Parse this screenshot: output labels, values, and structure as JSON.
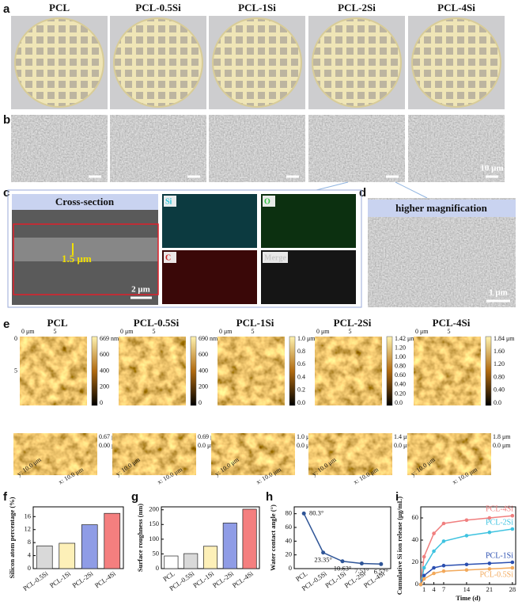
{
  "panels": [
    "a",
    "b",
    "c",
    "d",
    "e",
    "f",
    "g",
    "h",
    "i"
  ],
  "groups": [
    "PCL",
    "PCL-0.5Si",
    "PCL-1Si",
    "PCL-2Si",
    "PCL-4Si"
  ],
  "sem_scale": "10 μm",
  "cross_section": {
    "title": "Cross-section",
    "thickness": "1.5 μm",
    "scale": "2 μm"
  },
  "eds": [
    "Si",
    "O",
    "C",
    "Merge"
  ],
  "magnified": {
    "title": "higher magnification",
    "scale": "1 μm"
  },
  "afm": {
    "axis_top": [
      "0 μm",
      "5"
    ],
    "axis_left": [
      "0",
      "5"
    ],
    "axis_3d": [
      "y: 10.0 μm",
      "x: 10.0 μm"
    ],
    "maps": [
      {
        "colorbar": [
          "669 nm",
          "600",
          "400",
          "200",
          "0"
        ],
        "z_top": "0.67 μm",
        "z_bottom": "0.00 μm"
      },
      {
        "colorbar": [
          "690 nm",
          "600",
          "400",
          "200",
          "0"
        ],
        "z_top": "0.69 μm",
        "z_bottom": "0.0 μm"
      },
      {
        "colorbar": [
          "1.0 μm",
          "0.8",
          "0.6",
          "0.4",
          "0.2",
          "0.0"
        ],
        "z_top": "1.0 μm",
        "z_bottom": "0.0 μm"
      },
      {
        "colorbar": [
          "1.42 μm",
          "1.20",
          "1.00",
          "0.80",
          "0.60",
          "0.40",
          "0.20",
          "0.0"
        ],
        "z_top": "1.4 μm",
        "z_bottom": "0.0 μm"
      },
      {
        "colorbar": [
          "1.84 μm",
          "1.60",
          "1.20",
          "0.80",
          "0.40",
          "0.0"
        ],
        "z_top": "1.8 μm",
        "z_bottom": "0.0 μm"
      }
    ]
  },
  "chart_data": [
    {
      "type": "bar",
      "y_label": "Silicon atom percentage (%)",
      "categories": [
        "PCL-0.5Si",
        "PCL-1Si",
        "PCL-2Si",
        "PCL-4Si"
      ],
      "values": [
        7,
        7.8,
        13.5,
        17
      ],
      "colors": [
        "#d9d9d9",
        "#fdf0b8",
        "#8f9ce6",
        "#f47f7f"
      ],
      "ylim": [
        0,
        19
      ],
      "yticks": [
        0,
        4,
        8,
        12,
        16
      ]
    },
    {
      "type": "bar",
      "y_label": "Surface roughness (nm)",
      "categories": [
        "PCL",
        "PCL-0.5Si",
        "PCL-1Si",
        "PCL-2Si",
        "PCL-4Si"
      ],
      "values": [
        43,
        51,
        76,
        155,
        202
      ],
      "colors": [
        "#ffffff",
        "#d9d9d9",
        "#fdf0b8",
        "#8f9ce6",
        "#f47f7f"
      ],
      "ylim": [
        0,
        210
      ],
      "yticks": [
        0,
        50,
        100,
        150,
        200
      ]
    },
    {
      "type": "line",
      "y_label": "Water contact angle (°)",
      "categories": [
        "PCL",
        "PCL-0.5Si",
        "PCL-1Si",
        "PCL-2Si",
        "PCL-4Si"
      ],
      "values": [
        80.3,
        23.35,
        10.63,
        7.51,
        6.57
      ],
      "value_labels": [
        "80.3°",
        "23.35°",
        "10.63°",
        "7.51°",
        "6.57°"
      ],
      "color": "#2f5597",
      "ylim": [
        0,
        90
      ],
      "yticks": [
        0,
        20,
        40,
        60,
        80
      ]
    },
    {
      "type": "line",
      "x_label": "Time (d)",
      "y_label": "Cumulative Si ion release (μg/mL)",
      "x": [
        0,
        1,
        4,
        7,
        14,
        21,
        28
      ],
      "series": [
        {
          "name": "PCL-4Si",
          "color": "#f07f7f",
          "values": [
            0,
            25,
            46,
            55,
            58,
            60,
            62
          ]
        },
        {
          "name": "PCL-2Si",
          "color": "#3fc3e0",
          "values": [
            0,
            15,
            30,
            39,
            44,
            47,
            50
          ]
        },
        {
          "name": "PCL-1Si",
          "color": "#2b4fb0",
          "values": [
            0,
            8,
            15,
            17,
            18,
            19,
            20
          ]
        },
        {
          "name": "PCL-0.5Si",
          "color": "#f2a95b",
          "values": [
            0,
            5,
            10,
            12,
            13,
            14,
            15
          ]
        }
      ],
      "xlim": [
        0,
        29
      ],
      "xticks": [
        1,
        4,
        7,
        14,
        21,
        28
      ],
      "ylim": [
        0,
        70
      ],
      "yticks": [
        0,
        20,
        40,
        60
      ]
    }
  ]
}
